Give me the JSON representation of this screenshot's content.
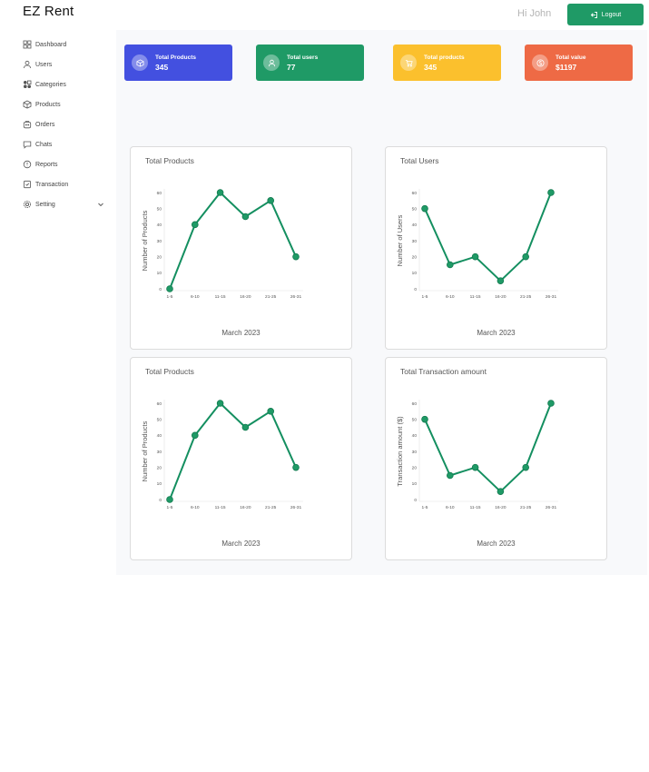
{
  "header": {
    "brand": "EZ Rent",
    "greeting": "Hi John",
    "logout_label": "Logout"
  },
  "sidebar": {
    "items": [
      {
        "label": "Dashboard",
        "icon": "dashboard-icon"
      },
      {
        "label": "Users",
        "icon": "user-icon"
      },
      {
        "label": "Categories",
        "icon": "categories-icon"
      },
      {
        "label": "Products",
        "icon": "box-icon"
      },
      {
        "label": "Orders",
        "icon": "orders-icon"
      },
      {
        "label": "Chats",
        "icon": "chat-icon"
      },
      {
        "label": "Reports",
        "icon": "reports-icon"
      },
      {
        "label": "Transaction",
        "icon": "transaction-icon"
      },
      {
        "label": "Setting",
        "icon": "gear-icon"
      }
    ]
  },
  "stats": [
    {
      "label": "Total Products",
      "value": "345",
      "color": "#4350e0",
      "icon": "box-icon"
    },
    {
      "label": "Total users",
      "value": "77",
      "color": "#1f9a66",
      "icon": "user-icon"
    },
    {
      "label": "Total products",
      "value": "345",
      "color": "#fbc02d",
      "icon": "cart-icon"
    },
    {
      "label": "Total value",
      "value": "$1197",
      "color": "#ee6a45",
      "icon": "dollar-icon"
    }
  ],
  "chart_data": [
    {
      "type": "line",
      "title": "Total Products",
      "categories": [
        "1-5",
        "6-10",
        "11-15",
        "16-20",
        "21-25",
        "26-31"
      ],
      "values": [
        0,
        40,
        60,
        45,
        55,
        20
      ],
      "xlabel": "March 2023",
      "ylabel": "Number of Products",
      "ylim": [
        0,
        60
      ],
      "yticks": [
        0,
        10,
        20,
        30,
        40,
        50,
        60
      ],
      "color": "#148f60"
    },
    {
      "type": "line",
      "title": "Total Users",
      "categories": [
        "1-5",
        "6-10",
        "11-15",
        "16-20",
        "21-25",
        "26-31"
      ],
      "values": [
        50,
        15,
        20,
        5,
        20,
        60
      ],
      "xlabel": "March 2023",
      "ylabel": "Number of Users",
      "ylim": [
        0,
        60
      ],
      "yticks": [
        0,
        10,
        20,
        30,
        40,
        50,
        60
      ],
      "color": "#148f60"
    },
    {
      "type": "line",
      "title": "Total Products",
      "categories": [
        "1-5",
        "6-10",
        "11-15",
        "16-20",
        "21-25",
        "26-31"
      ],
      "values": [
        0,
        40,
        60,
        45,
        55,
        20
      ],
      "xlabel": "March 2023",
      "ylabel": "Number of Products",
      "ylim": [
        0,
        60
      ],
      "yticks": [
        0,
        10,
        20,
        30,
        40,
        50,
        60
      ],
      "color": "#148f60"
    },
    {
      "type": "line",
      "title": "Total Transaction amount",
      "categories": [
        "1-5",
        "6-10",
        "11-15",
        "16-20",
        "21-25",
        "26-31"
      ],
      "values": [
        50,
        15,
        20,
        5,
        20,
        60
      ],
      "xlabel": "March 2023",
      "ylabel": "Transaction amount ($)",
      "ylim": [
        0,
        60
      ],
      "yticks": [
        0,
        10,
        20,
        30,
        40,
        50,
        60
      ],
      "color": "#148f60"
    }
  ]
}
